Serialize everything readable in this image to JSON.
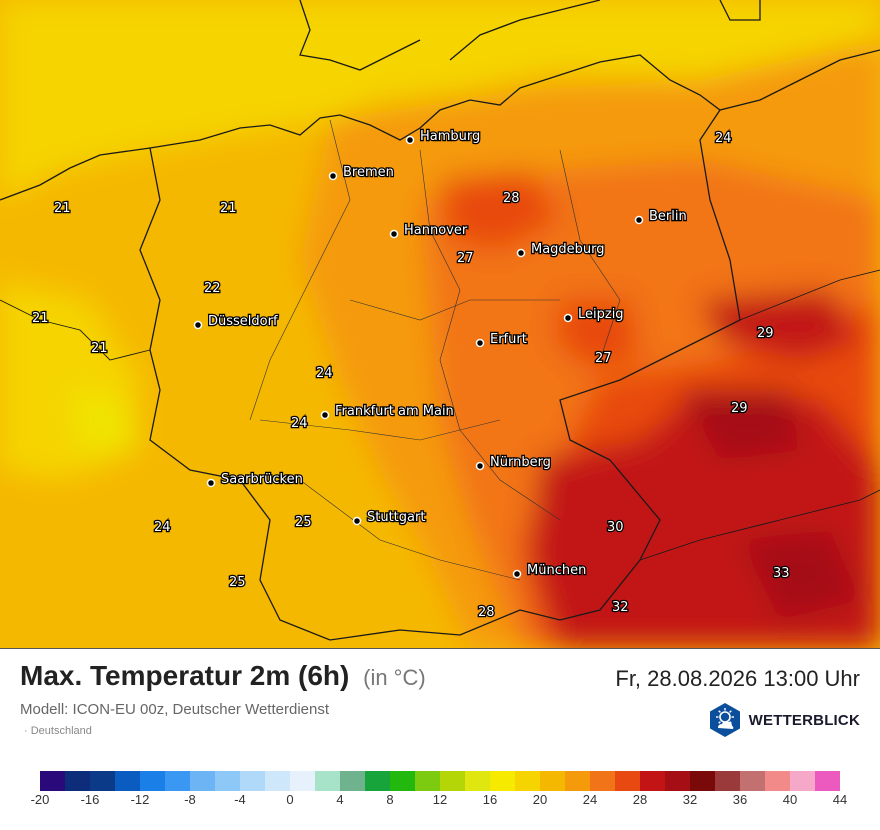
{
  "header": {
    "title": "Max. Temperatur 2m (6h)",
    "unit": "(in °C)",
    "datetime": "Fr, 28.08.2026 13:00 Uhr",
    "model": "Modell: ICON-EU 00z, Deutscher Wetterdienst",
    "region": "· Deutschland",
    "brand": "WETTERBLICK"
  },
  "cities": [
    {
      "name": "Hamburg"
    },
    {
      "name": "Bremen"
    },
    {
      "name": "Berlin"
    },
    {
      "name": "Hannover"
    },
    {
      "name": "Magdeburg"
    },
    {
      "name": "Düsseldorf"
    },
    {
      "name": "Leipzig"
    },
    {
      "name": "Erfurt"
    },
    {
      "name": "Frankfurt am Main"
    },
    {
      "name": "Nürnberg"
    },
    {
      "name": "Saarbrücken"
    },
    {
      "name": "Stuttgart"
    },
    {
      "name": "München"
    }
  ],
  "contour_labels": [
    "21",
    "21",
    "21",
    "21",
    "22",
    "24",
    "24",
    "24",
    "24",
    "25",
    "25",
    "27",
    "27",
    "28",
    "28",
    "29",
    "29",
    "30",
    "32",
    "33"
  ],
  "legend": {
    "ticks": [
      "-20",
      "-16",
      "-12",
      "-8",
      "-4",
      "0",
      "4",
      "8",
      "12",
      "16",
      "20",
      "24",
      "28",
      "32",
      "36",
      "40",
      "44"
    ],
    "colors": [
      "#2a0a7a",
      "#0d2d7a",
      "#0a3a88",
      "#0a5cc0",
      "#1a7fe6",
      "#3a98f2",
      "#6db4f5",
      "#8ec8f7",
      "#b0d8f9",
      "#cfe7fb",
      "#e6f1fb",
      "#a7e3c8",
      "#6fb38e",
      "#17a43a",
      "#22b80e",
      "#7dcb10",
      "#b4d606",
      "#e0e610",
      "#f5ea00",
      "#f5d400",
      "#f5b800",
      "#f59a0a",
      "#f27418",
      "#e84910",
      "#c21414",
      "#a50e14",
      "#7a0a0a",
      "#9a3a3a",
      "#c27070",
      "#f28a8a",
      "#f5a8c8",
      "#ec5ac0"
    ]
  }
}
